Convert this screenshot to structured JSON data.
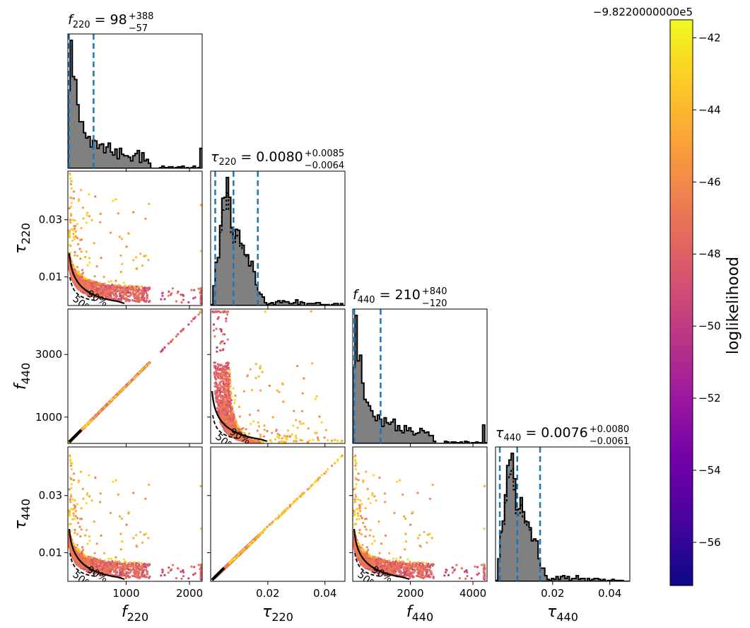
{
  "figure": {
    "type": "corner_plot",
    "parameters": [
      {
        "key": "f220",
        "symbol": "f",
        "sub": "220"
      },
      {
        "key": "tau220",
        "symbol": "τ",
        "sub": "220"
      },
      {
        "key": "f440",
        "symbol": "f",
        "sub": "440"
      },
      {
        "key": "tau440",
        "symbol": "τ",
        "sub": "440"
      }
    ],
    "titles": [
      {
        "symbol": "f",
        "sub": "220",
        "eq": " = ",
        "value": "98",
        "plus": "+388",
        "minus": "−57"
      },
      {
        "symbol": "τ",
        "sub": "220",
        "eq": " = ",
        "value": "0.0080",
        "plus": "+0.0085",
        "minus": "−0.0064"
      },
      {
        "symbol": "f",
        "sub": "440",
        "eq": " = ",
        "value": "210",
        "plus": "+840",
        "minus": "−120"
      },
      {
        "symbol": "τ",
        "sub": "440",
        "eq": " = ",
        "value": "0.0076",
        "plus": "+0.0080",
        "minus": "−0.0061"
      }
    ],
    "contour_labels": [
      "50%",
      "90%"
    ],
    "colorbar": {
      "label": "loglikelihood",
      "offset_text": "−9.8220000000e5",
      "ticks": [
        "−42",
        "−44",
        "−46",
        "−48",
        "−50",
        "−52",
        "−54",
        "−56"
      ],
      "colormap": "plasma"
    }
  },
  "chart_data": {
    "type": "scatter",
    "plot_kind": "corner",
    "axes": {
      "f220": {
        "range": [
          80,
          2200
        ],
        "ticks": [
          1000,
          2000
        ],
        "tick_labels": [
          "1000",
          "2000"
        ]
      },
      "tau220": {
        "range": [
          0.0,
          0.047
        ],
        "ticks": [
          0.02,
          0.04
        ],
        "tick_labels": [
          "0.02",
          "0.04"
        ],
        "y_ticks": [
          0.01,
          0.03
        ],
        "y_tick_labels": [
          "0.01",
          "0.03"
        ]
      },
      "f440": {
        "range": [
          160,
          4450
        ],
        "ticks": [
          2000,
          4000
        ],
        "tick_labels": [
          "2000",
          "4000"
        ],
        "y_ticks": [
          1000,
          3000
        ],
        "y_tick_labels": [
          "1000",
          "3000"
        ]
      },
      "tau440": {
        "range": [
          0.0,
          0.047
        ],
        "ticks": [
          0.02,
          0.04
        ],
        "tick_labels": [
          "0.02",
          "0.04"
        ],
        "y_ticks": [
          0.01,
          0.03
        ],
        "y_tick_labels": [
          "0.01",
          "0.03"
        ]
      }
    },
    "marginals": {
      "f220": {
        "median": 98,
        "lower": 41,
        "upper": 486
      },
      "tau220": {
        "median": 0.008,
        "lower": 0.0016,
        "upper": 0.0165
      },
      "f440": {
        "median": 210,
        "lower": 90,
        "upper": 1050
      },
      "tau440": {
        "median": 0.0076,
        "lower": 0.0015,
        "upper": 0.0156
      }
    },
    "relations": {
      "f440_vs_f220_slope": 2.0,
      "tau440_vs_tau220_slope": 0.95
    },
    "colorbar_range": [
      -57.2,
      -41.5
    ]
  }
}
